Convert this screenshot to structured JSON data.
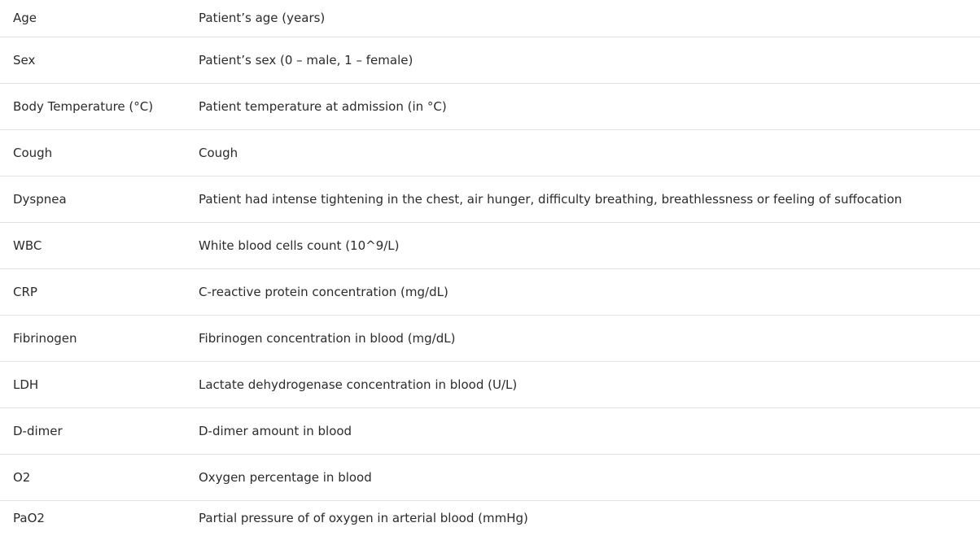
{
  "table": {
    "rows": [
      {
        "name": "Age",
        "description": "Patient’s age (years)"
      },
      {
        "name": "Sex",
        "description": "Patient’s sex (0 – male, 1 – female)"
      },
      {
        "name": "Body Temperature (°C)",
        "description": "Patient temperature at admission (in °C)"
      },
      {
        "name": "Cough",
        "description": "Cough"
      },
      {
        "name": "Dyspnea",
        "description": "Patient had intense tightening in the chest, air hunger, difficulty breathing, breathlessness or feeling of suffocation"
      },
      {
        "name": "WBC",
        "description": "White blood cells count (10^9/L)"
      },
      {
        "name": "CRP",
        "description": "C-reactive protein concentration (mg/dL)"
      },
      {
        "name": "Fibrinogen",
        "description": "Fibrinogen concentration in blood (mg/dL)"
      },
      {
        "name": "LDH",
        "description": "Lactate dehydrogenase concentration in blood (U/L)"
      },
      {
        "name": "D-dimer",
        "description": "D-dimer amount in blood"
      },
      {
        "name": "O2",
        "description": "Oxygen percentage in blood"
      },
      {
        "name": "PaO2",
        "description": "Partial pressure of of oxygen in arterial blood (mmHg)"
      }
    ]
  }
}
